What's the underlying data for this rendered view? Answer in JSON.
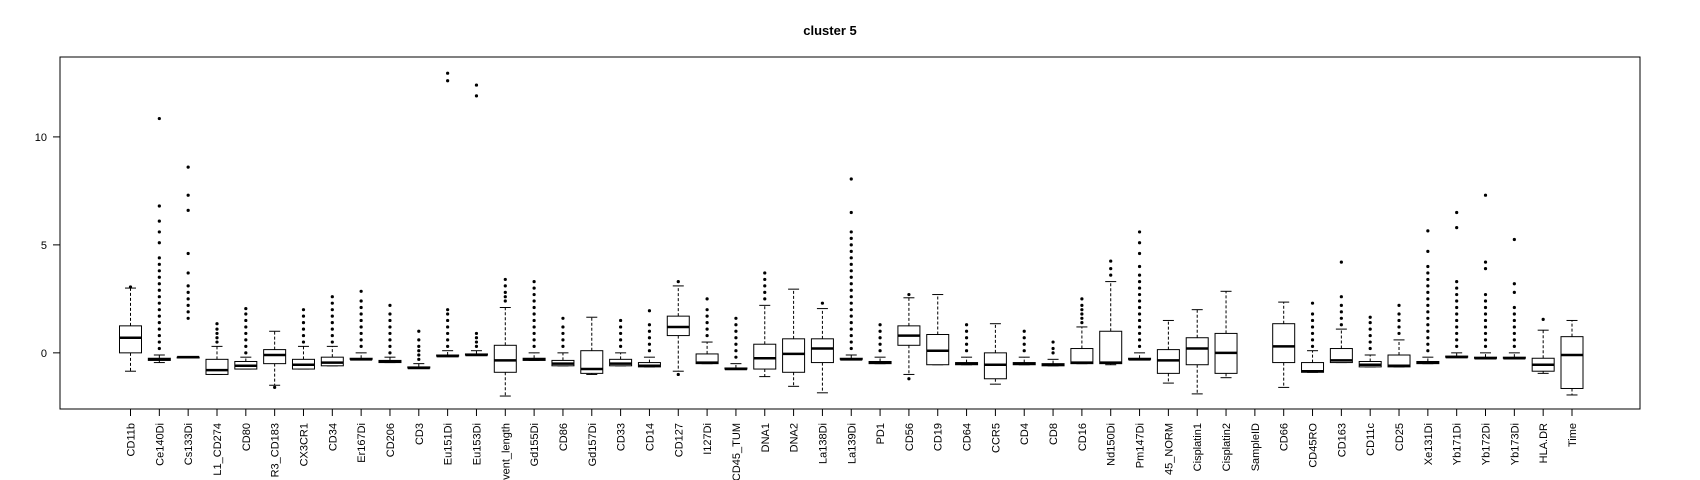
{
  "chart_data": {
    "type": "boxplot",
    "title": "cluster 5",
    "xlabel": "",
    "ylabel": "",
    "ylim": [
      -2.6,
      13.7
    ],
    "yticks": [
      0,
      5,
      10
    ],
    "ytick_labels": [
      "0",
      "5",
      "10"
    ],
    "grid": false,
    "legend": "none",
    "colors": {
      "box": "#000000",
      "background": "#ffffff"
    },
    "categories": [
      "CD11b",
      "Ce140Di",
      "Cs133Di",
      "L1_CD274",
      "CD80",
      "R3_CD183",
      "CX3CR1",
      "CD34",
      "Er167Di",
      "CD206",
      "CD3",
      "Eu151Di",
      "Eu153Di",
      "vent_length",
      "Gd155Di",
      "CD86",
      "Gd157Di",
      "CD33",
      "CD14",
      "CD127",
      "I127Di",
      "CD45_TUM",
      "DNA1",
      "DNA2",
      "La138Di",
      "La139Di",
      "PD1",
      "CD56",
      "CD19",
      "CD64",
      "CCR5",
      "CD4",
      "CD8",
      "CD16",
      "Nd150Di",
      "Pm147Di",
      "45_NORM",
      "Cisplatin1",
      "Cisplatin2",
      "SampleID",
      "CD66",
      "CD45RO",
      "CD163",
      "CD11c",
      "CD25",
      "Xe131Di",
      "Yb171Di",
      "Yb172Di",
      "Yb173Di",
      "HLA.DR",
      "Time"
    ],
    "boxes": [
      {
        "lw": -0.85,
        "q1": 0.0,
        "med": 0.7,
        "q3": 1.25,
        "uw": 3.0,
        "out": [
          3.05
        ]
      },
      {
        "lw": -0.45,
        "q1": -0.35,
        "med": -0.3,
        "q3": -0.25,
        "uw": -0.1,
        "out": [
          0.2,
          0.5,
          0.8,
          1.1,
          1.4,
          1.7,
          2.0,
          2.3,
          2.6,
          2.9,
          3.2,
          3.5,
          3.8,
          4.1,
          4.4,
          5.1,
          5.6,
          6.1,
          6.8,
          10.85
        ]
      },
      {
        "lw": -0.2,
        "q1": -0.2,
        "med": -0.2,
        "q3": -0.2,
        "uw": -0.2,
        "out": [
          1.6,
          1.9,
          2.2,
          2.5,
          2.8,
          3.1,
          3.7,
          4.6,
          6.6,
          7.3,
          8.6
        ]
      },
      {
        "lw": -1.0,
        "q1": -1.0,
        "med": -0.8,
        "q3": -0.3,
        "uw": 0.3,
        "out": [
          0.5,
          0.7,
          0.9,
          1.1,
          1.35
        ]
      },
      {
        "lw": -0.75,
        "q1": -0.75,
        "med": -0.6,
        "q3": -0.4,
        "uw": -0.2,
        "out": [
          0.0,
          0.3,
          0.6,
          0.9,
          1.2,
          1.5,
          1.8,
          2.05
        ]
      },
      {
        "lw": -1.5,
        "q1": -0.5,
        "med": -0.1,
        "q3": 0.15,
        "uw": 1.0,
        "out": [
          -1.6
        ]
      },
      {
        "lw": -0.75,
        "q1": -0.75,
        "med": -0.55,
        "q3": -0.3,
        "uw": 0.3,
        "out": [
          0.5,
          0.8,
          1.1,
          1.4,
          1.7,
          2.0
        ]
      },
      {
        "lw": -0.6,
        "q1": -0.6,
        "med": -0.45,
        "q3": -0.2,
        "uw": 0.3,
        "out": [
          0.5,
          0.8,
          1.1,
          1.4,
          1.7,
          2.0,
          2.3,
          2.6
        ]
      },
      {
        "lw": -0.3,
        "q1": -0.3,
        "med": -0.3,
        "q3": -0.25,
        "uw": 0.0,
        "out": [
          0.3,
          0.6,
          0.9,
          1.2,
          1.5,
          1.8,
          2.1,
          2.4,
          2.85
        ]
      },
      {
        "lw": -0.45,
        "q1": -0.45,
        "med": -0.4,
        "q3": -0.35,
        "uw": -0.2,
        "out": [
          0.0,
          0.3,
          0.6,
          0.9,
          1.2,
          1.5,
          1.8,
          2.2
        ]
      },
      {
        "lw": -0.7,
        "q1": -0.7,
        "med": -0.7,
        "q3": -0.65,
        "uw": -0.5,
        "out": [
          -0.3,
          -0.1,
          0.1,
          0.3,
          0.6,
          1.0
        ]
      },
      {
        "lw": -0.15,
        "q1": -0.15,
        "med": -0.15,
        "q3": -0.1,
        "uw": 0.1,
        "out": [
          0.3,
          0.6,
          0.9,
          1.2,
          1.5,
          1.8,
          2.0,
          12.6,
          12.95
        ]
      },
      {
        "lw": -0.1,
        "q1": -0.1,
        "med": -0.1,
        "q3": -0.05,
        "uw": 0.1,
        "out": [
          0.3,
          0.5,
          0.7,
          0.9,
          11.9,
          12.4
        ]
      },
      {
        "lw": -2.0,
        "q1": -0.9,
        "med": -0.35,
        "q3": 0.35,
        "uw": 2.1,
        "out": [
          2.4,
          2.6,
          2.8,
          3.1,
          3.4
        ]
      },
      {
        "lw": -0.35,
        "q1": -0.35,
        "med": -0.3,
        "q3": -0.25,
        "uw": 0.0,
        "out": [
          0.3,
          0.6,
          0.9,
          1.2,
          1.5,
          1.8,
          2.1,
          2.4,
          2.7,
          3.0,
          3.3
        ]
      },
      {
        "lw": -0.6,
        "q1": -0.6,
        "med": -0.5,
        "q3": -0.35,
        "uw": 0.0,
        "out": [
          0.3,
          0.6,
          0.9,
          1.2,
          1.6
        ]
      },
      {
        "lw": -1.0,
        "q1": -0.95,
        "med": -0.75,
        "q3": 0.1,
        "uw": 1.65,
        "out": []
      },
      {
        "lw": -0.6,
        "q1": -0.6,
        "med": -0.5,
        "q3": -0.3,
        "uw": 0.0,
        "out": [
          0.3,
          0.6,
          0.9,
          1.2,
          1.5
        ]
      },
      {
        "lw": -0.65,
        "q1": -0.65,
        "med": -0.6,
        "q3": -0.45,
        "uw": -0.2,
        "out": [
          0.1,
          0.4,
          0.7,
          1.0,
          1.3,
          1.95
        ]
      },
      {
        "lw": -0.85,
        "q1": 0.8,
        "med": 1.2,
        "q3": 1.7,
        "uw": 3.1,
        "out": [
          -1.0,
          3.3
        ]
      },
      {
        "lw": -0.5,
        "q1": -0.5,
        "med": -0.45,
        "q3": -0.05,
        "uw": 0.5,
        "out": [
          0.8,
          1.1,
          1.4,
          1.7,
          2.0,
          2.5
        ]
      },
      {
        "lw": -0.75,
        "q1": -0.75,
        "med": -0.75,
        "q3": -0.7,
        "uw": -0.5,
        "out": [
          -0.2,
          0.1,
          0.4,
          0.7,
          1.0,
          1.3,
          1.6
        ]
      },
      {
        "lw": -1.1,
        "q1": -0.75,
        "med": -0.25,
        "q3": 0.4,
        "uw": 2.2,
        "out": [
          2.5,
          2.8,
          3.1,
          3.4,
          3.7
        ]
      },
      {
        "lw": -1.55,
        "q1": -0.9,
        "med": -0.05,
        "q3": 0.65,
        "uw": 2.95,
        "out": []
      },
      {
        "lw": -1.85,
        "q1": -0.45,
        "med": 0.2,
        "q3": 0.65,
        "uw": 2.05,
        "out": [
          2.3
        ]
      },
      {
        "lw": -0.3,
        "q1": -0.3,
        "med": -0.3,
        "q3": -0.25,
        "uw": -0.1,
        "out": [
          0.2,
          0.5,
          0.8,
          1.1,
          1.4,
          1.7,
          2.0,
          2.3,
          2.6,
          2.9,
          3.2,
          3.5,
          3.8,
          4.1,
          4.4,
          4.7,
          5.0,
          5.3,
          5.6,
          6.5,
          8.05
        ]
      },
      {
        "lw": -0.5,
        "q1": -0.5,
        "med": -0.45,
        "q3": -0.4,
        "uw": -0.2,
        "out": [
          0.1,
          0.4,
          0.7,
          1.0,
          1.3
        ]
      },
      {
        "lw": -1.0,
        "q1": 0.35,
        "med": 0.8,
        "q3": 1.25,
        "uw": 2.55,
        "out": [
          -1.2,
          2.7
        ]
      },
      {
        "lw": -0.55,
        "q1": -0.55,
        "med": 0.1,
        "q3": 0.85,
        "uw": 2.7,
        "out": []
      },
      {
        "lw": -0.55,
        "q1": -0.55,
        "med": -0.5,
        "q3": -0.45,
        "uw": -0.2,
        "out": [
          0.1,
          0.4,
          0.7,
          1.0,
          1.3
        ]
      },
      {
        "lw": -1.45,
        "q1": -1.2,
        "med": -0.55,
        "q3": 0.0,
        "uw": 1.35,
        "out": []
      },
      {
        "lw": -0.55,
        "q1": -0.55,
        "med": -0.5,
        "q3": -0.45,
        "uw": -0.2,
        "out": [
          0.1,
          0.4,
          0.7,
          1.0
        ]
      },
      {
        "lw": -0.6,
        "q1": -0.6,
        "med": -0.55,
        "q3": -0.5,
        "uw": -0.3,
        "out": [
          0.0,
          0.2,
          0.5
        ]
      },
      {
        "lw": -0.5,
        "q1": -0.5,
        "med": -0.45,
        "q3": 0.2,
        "uw": 1.2,
        "out": [
          1.4,
          1.6,
          1.8,
          2.0,
          2.2,
          2.5
        ]
      },
      {
        "lw": -0.55,
        "q1": -0.5,
        "med": -0.45,
        "q3": 1.0,
        "uw": 3.3,
        "out": [
          3.6,
          3.9,
          4.25
        ]
      },
      {
        "lw": -0.3,
        "q1": -0.3,
        "med": -0.3,
        "q3": -0.25,
        "uw": 0.0,
        "out": [
          0.3,
          0.6,
          0.9,
          1.2,
          1.5,
          1.8,
          2.1,
          2.4,
          2.7,
          3.0,
          3.3,
          3.6,
          4.0,
          4.6,
          5.1,
          5.6
        ]
      },
      {
        "lw": -1.4,
        "q1": -0.95,
        "med": -0.35,
        "q3": 0.15,
        "uw": 1.5,
        "out": []
      },
      {
        "lw": -1.9,
        "q1": -0.55,
        "med": 0.2,
        "q3": 0.7,
        "uw": 2.0,
        "out": []
      },
      {
        "lw": -1.15,
        "q1": -0.95,
        "med": 0.0,
        "q3": 0.9,
        "uw": 2.85,
        "out": []
      },
      null,
      {
        "lw": -1.6,
        "q1": -0.45,
        "med": 0.3,
        "q3": 1.35,
        "uw": 2.35,
        "out": []
      },
      {
        "lw": -0.9,
        "q1": -0.9,
        "med": -0.85,
        "q3": -0.45,
        "uw": 0.1,
        "out": [
          0.3,
          0.6,
          0.9,
          1.2,
          1.5,
          1.8,
          2.3
        ]
      },
      {
        "lw": -0.45,
        "q1": -0.45,
        "med": -0.35,
        "q3": 0.2,
        "uw": 1.1,
        "out": [
          1.3,
          1.6,
          1.9,
          2.2,
          2.6,
          4.2
        ]
      },
      {
        "lw": -0.65,
        "q1": -0.65,
        "med": -0.55,
        "q3": -0.4,
        "uw": -0.1,
        "out": [
          0.2,
          0.5,
          0.8,
          1.1,
          1.4,
          1.65
        ]
      },
      {
        "lw": -0.65,
        "q1": -0.65,
        "med": -0.6,
        "q3": -0.1,
        "uw": 0.6,
        "out": [
          0.9,
          1.2,
          1.5,
          1.8,
          2.2
        ]
      },
      {
        "lw": -0.5,
        "q1": -0.5,
        "med": -0.45,
        "q3": -0.4,
        "uw": -0.2,
        "out": [
          0.1,
          0.4,
          0.7,
          1.0,
          1.3,
          1.6,
          1.9,
          2.2,
          2.5,
          2.8,
          3.1,
          3.4,
          3.7,
          4.0,
          4.7,
          5.65
        ]
      },
      {
        "lw": -0.2,
        "q1": -0.2,
        "med": -0.2,
        "q3": -0.15,
        "uw": 0.0,
        "out": [
          0.3,
          0.6,
          0.9,
          1.2,
          1.5,
          1.8,
          2.1,
          2.4,
          2.7,
          3.0,
          3.3,
          5.8,
          6.5
        ]
      },
      {
        "lw": -0.25,
        "q1": -0.25,
        "med": -0.25,
        "q3": -0.2,
        "uw": 0.0,
        "out": [
          0.3,
          0.6,
          0.9,
          1.2,
          1.5,
          1.8,
          2.1,
          2.4,
          2.7,
          3.9,
          4.2,
          7.3
        ]
      },
      {
        "lw": -0.25,
        "q1": -0.25,
        "med": -0.25,
        "q3": -0.2,
        "uw": 0.0,
        "out": [
          0.3,
          0.6,
          0.9,
          1.2,
          1.5,
          1.8,
          2.1,
          2.8,
          3.2,
          5.25
        ]
      },
      {
        "lw": -0.95,
        "q1": -0.85,
        "med": -0.55,
        "q3": -0.25,
        "uw": 1.05,
        "out": [
          1.55
        ]
      },
      {
        "lw": -1.95,
        "q1": -1.65,
        "med": -0.1,
        "q3": 0.75,
        "uw": 1.5,
        "out": []
      }
    ]
  }
}
